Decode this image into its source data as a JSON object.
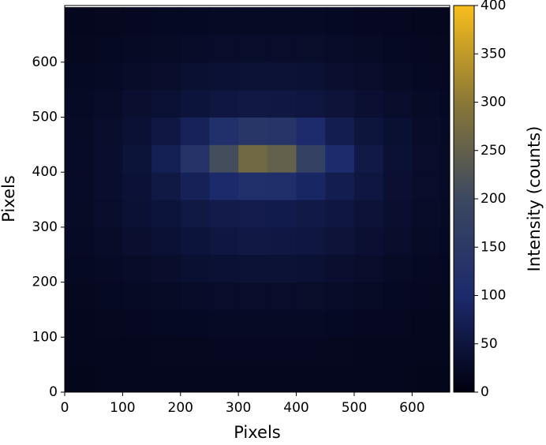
{
  "chart_data": {
    "type": "heatmap",
    "xlabel": "Pixels",
    "ylabel": "Pixels",
    "colorbar_label": "Intensity (counts)",
    "xlim": [
      0,
      665
    ],
    "ylim": [
      0,
      703
    ],
    "xticks": [
      0,
      100,
      200,
      300,
      400,
      500,
      600
    ],
    "yticks": [
      0,
      100,
      200,
      300,
      400,
      500,
      600
    ],
    "x_bins": [
      0,
      50,
      100,
      150,
      200,
      250,
      300,
      350,
      400,
      450,
      500,
      550,
      600,
      650,
      700
    ],
    "y_bins": [
      0,
      50,
      100,
      150,
      200,
      250,
      300,
      350,
      400,
      450,
      500,
      550,
      600,
      650,
      700
    ],
    "z": [
      [
        15,
        16,
        16,
        16,
        16,
        17,
        17,
        17,
        17,
        16,
        16,
        16,
        15,
        15
      ],
      [
        16,
        16,
        17,
        18,
        18,
        19,
        19,
        19,
        19,
        18,
        17,
        17,
        16,
        16
      ],
      [
        17,
        18,
        19,
        21,
        22,
        23,
        24,
        24,
        23,
        22,
        20,
        19,
        17,
        17
      ],
      [
        18,
        21,
        23,
        26,
        29,
        31,
        32,
        31,
        30,
        28,
        25,
        22,
        20,
        18
      ],
      [
        21,
        24,
        28,
        33,
        37,
        41,
        43,
        42,
        40,
        36,
        31,
        26,
        22,
        20
      ],
      [
        23,
        28,
        35,
        41,
        48,
        53,
        56,
        55,
        51,
        46,
        39,
        32,
        26,
        22
      ],
      [
        25,
        32,
        40,
        48,
        57,
        64,
        67,
        66,
        61,
        54,
        45,
        36,
        29,
        24
      ],
      [
        27,
        34,
        44,
        57,
        78,
        101,
        117,
        113,
        91,
        69,
        52,
        39,
        31,
        25
      ],
      [
        27,
        34,
        47,
        73,
        130,
        211,
        268,
        251,
        176,
        103,
        61,
        41,
        31,
        25
      ],
      [
        25,
        32,
        41,
        55,
        82,
        117,
        140,
        133,
        102,
        70,
        49,
        37,
        29,
        24
      ],
      [
        23,
        28,
        35,
        41,
        48,
        53,
        56,
        55,
        51,
        46,
        39,
        32,
        26,
        22
      ],
      [
        21,
        24,
        28,
        33,
        37,
        41,
        43,
        42,
        40,
        36,
        31,
        26,
        22,
        20
      ],
      [
        18,
        21,
        23,
        26,
        29,
        31,
        32,
        31,
        30,
        28,
        25,
        22,
        20,
        18
      ],
      [
        17,
        18,
        19,
        21,
        22,
        23,
        24,
        24,
        23,
        22,
        20,
        19,
        17,
        17
      ]
    ],
    "clim": [
      0,
      400
    ],
    "cticks": [
      0,
      50,
      100,
      150,
      200,
      250,
      300,
      350,
      400
    ],
    "colormap": [
      "#00000e",
      "#1c2a6c",
      "#3b4860",
      "#8a7836",
      "#f7bd1b"
    ]
  }
}
